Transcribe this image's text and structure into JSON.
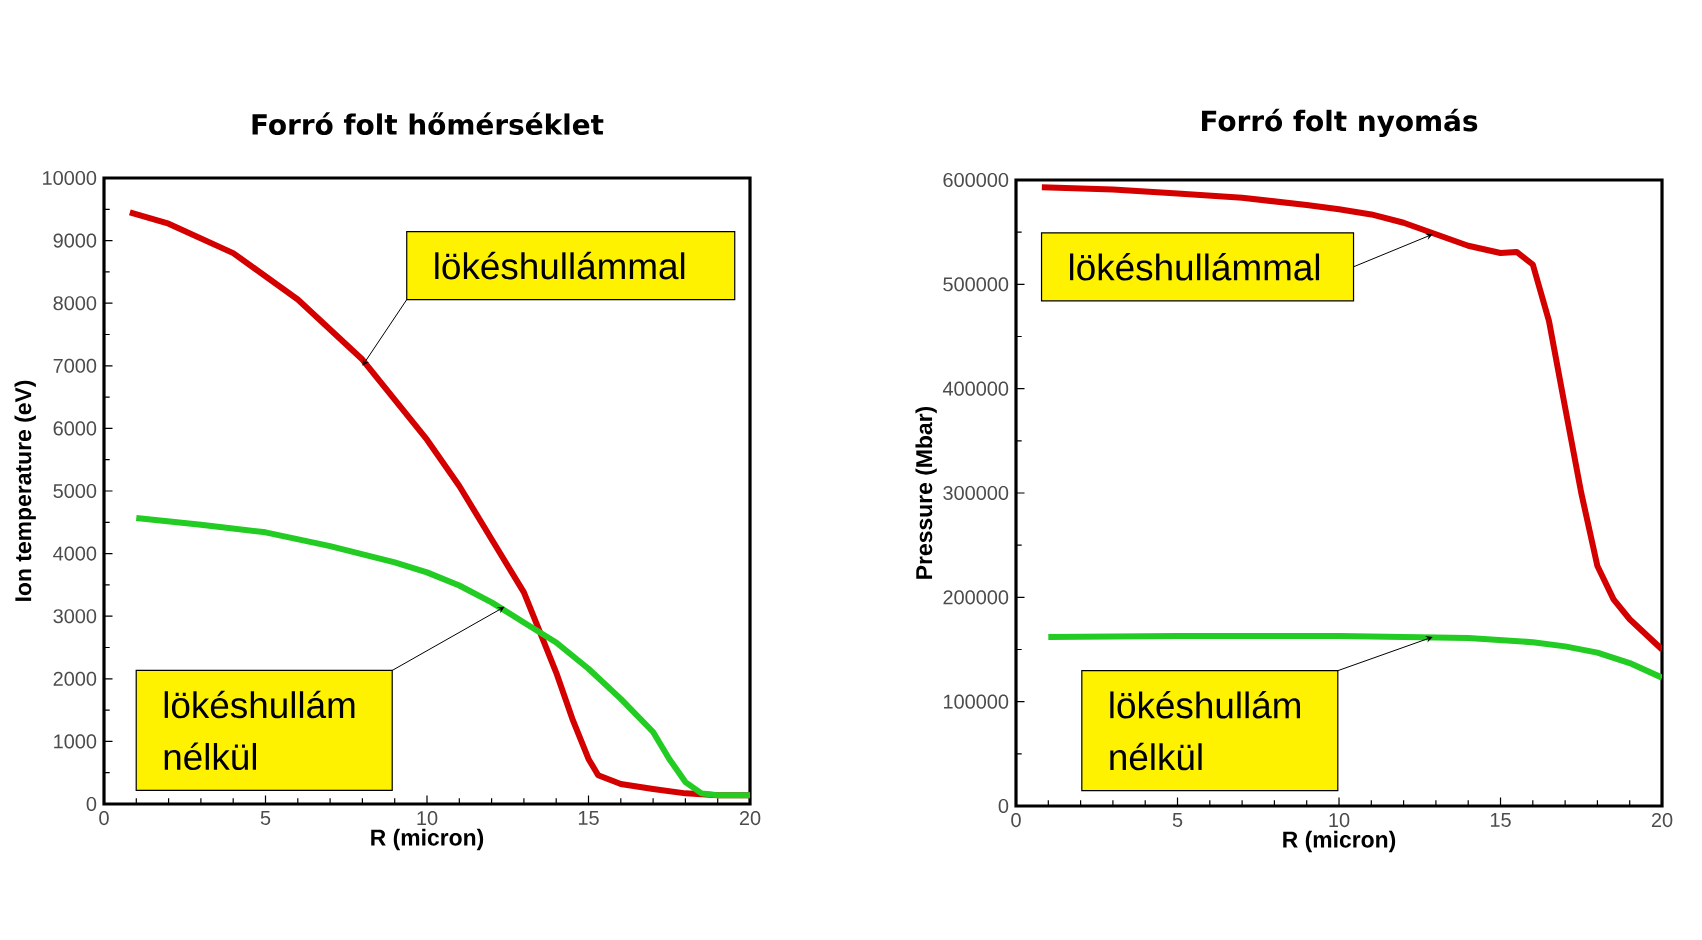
{
  "chart_data": [
    {
      "type": "line",
      "title": "Forró folt hőmérséklet",
      "xlabel": "R (micron)",
      "ylabel": "Ion temperature (eV)",
      "xlim": [
        0,
        20
      ],
      "ylim": [
        0,
        10000
      ],
      "xticks": [
        0,
        5,
        10,
        15,
        20
      ],
      "yticks": [
        0,
        1000,
        2000,
        3000,
        4000,
        5000,
        6000,
        7000,
        8000,
        9000,
        10000
      ],
      "series": [
        {
          "color": "#d40000",
          "x": [
            0.8,
            2,
            4,
            6,
            8,
            10,
            11,
            12,
            13,
            13.5,
            14,
            14.5,
            15,
            15.3,
            16,
            17,
            18,
            19,
            20
          ],
          "values": [
            9450,
            9270,
            8800,
            8060,
            7100,
            5820,
            5080,
            4230,
            3380,
            2740,
            2100,
            1360,
            720,
            460,
            320,
            240,
            170,
            140,
            140
          ]
        },
        {
          "color": "#22cc22",
          "x": [
            1,
            3,
            5,
            7,
            9,
            10,
            11,
            12,
            13,
            14,
            15,
            16,
            17,
            17.5,
            18,
            18.5,
            19,
            20
          ],
          "values": [
            4570,
            4460,
            4340,
            4120,
            3860,
            3700,
            3490,
            3220,
            2900,
            2580,
            2160,
            1680,
            1150,
            720,
            350,
            170,
            140,
            140
          ]
        }
      ],
      "annotations": [
        {
          "text": "lökéshullámmal",
          "x": 8,
          "y": 7000
        },
        {
          "text": "lökéshullám nélkül",
          "x": 12.4,
          "y": 3150
        }
      ]
    },
    {
      "type": "line",
      "title": "Forró folt nyomás",
      "xlabel": "R (micron)",
      "ylabel": "Pressure (Mbar)",
      "xlim": [
        0,
        20
      ],
      "ylim": [
        0,
        600000
      ],
      "xticks": [
        0,
        5,
        10,
        15,
        20
      ],
      "yticks": [
        0,
        100000,
        200000,
        300000,
        400000,
        500000,
        600000
      ],
      "series": [
        {
          "color": "#d40000",
          "x": [
            0.8,
            3,
            5,
            7,
            9,
            10,
            11,
            12,
            13,
            14,
            15,
            15.5,
            16,
            16.5,
            17,
            17.5,
            18,
            18.5,
            19,
            20
          ],
          "values": [
            593000,
            591000,
            587000,
            583000,
            576000,
            572000,
            567000,
            559000,
            548000,
            537000,
            530000,
            531000,
            519000,
            465000,
            382000,
            300000,
            230000,
            198000,
            179000,
            150000
          ]
        },
        {
          "color": "#22cc22",
          "x": [
            1,
            5,
            10,
            12,
            14,
            16,
            17,
            18,
            19,
            20
          ],
          "values": [
            162000,
            163000,
            163000,
            162000,
            161000,
            157000,
            153000,
            147000,
            137000,
            123000
          ]
        }
      ],
      "annotations": [
        {
          "text": "lökéshullámmal",
          "x": 12.9,
          "y": 548000
        },
        {
          "text": "lökéshullám nélkül",
          "x": 12.9,
          "y": 162000
        }
      ]
    }
  ]
}
